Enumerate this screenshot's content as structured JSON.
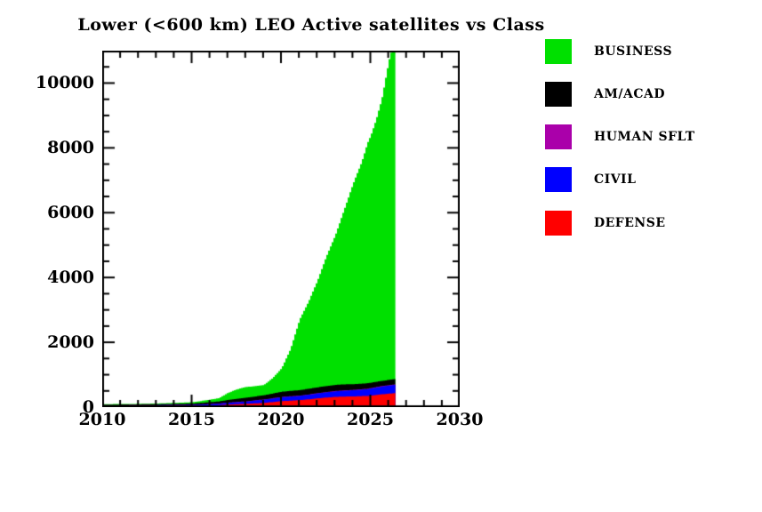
{
  "title": "Lower (<600 km) LEO Active satellites vs Class",
  "legend": {
    "items": [
      {
        "label": "BUSINESS",
        "color": "#00e000"
      },
      {
        "label": "AM/ACAD",
        "color": "#000000"
      },
      {
        "label": "HUMAN SFLT",
        "color": "#aa00aa"
      },
      {
        "label": "CIVIL",
        "color": "#0000ff"
      },
      {
        "label": "DEFENSE",
        "color": "#ff0000"
      }
    ]
  },
  "chart_data": {
    "type": "area",
    "stacked": true,
    "title": "Lower (<600 km) LEO Active satellites vs Class",
    "xlabel": "",
    "ylabel": "",
    "xlim": [
      2010,
      2030
    ],
    "ylim": [
      0,
      11000
    ],
    "grid": false,
    "legend_position": "right",
    "x_major_ticks": [
      2010,
      2015,
      2020,
      2025,
      2030
    ],
    "x_tick_labels": [
      "2010",
      "2015",
      "2020",
      "2025",
      "2030"
    ],
    "x_minor_step": 1,
    "y_major_ticks": [
      0,
      2000,
      4000,
      6000,
      8000,
      10000
    ],
    "y_tick_labels": [
      "0",
      "2000",
      "4000",
      "6000",
      "8000",
      "10000"
    ],
    "y_minor_step": 500,
    "data_end_year": 2026.4,
    "x": [
      2010,
      2011,
      2012,
      2013,
      2014,
      2015,
      2016,
      2016.5,
      2017,
      2017.5,
      2018,
      2018.5,
      2019,
      2019.5,
      2020,
      2020.5,
      2021,
      2021.5,
      2022,
      2022.5,
      2023,
      2023.5,
      2024,
      2024.5,
      2024.8,
      2025,
      2025.3,
      2025.6,
      2026,
      2026.4
    ],
    "series": [
      {
        "name": "DEFENSE",
        "color": "#ff0000",
        "values": [
          25,
          26,
          28,
          30,
          32,
          35,
          50,
          60,
          80,
          90,
          100,
          115,
          130,
          155,
          185,
          200,
          215,
          240,
          270,
          295,
          315,
          325,
          330,
          340,
          345,
          355,
          375,
          395,
          415,
          435
        ]
      },
      {
        "name": "CIVIL",
        "color": "#0000ff",
        "values": [
          25,
          26,
          27,
          28,
          30,
          32,
          40,
          45,
          55,
          62,
          70,
          85,
          100,
          110,
          120,
          125,
          130,
          140,
          150,
          160,
          170,
          180,
          190,
          200,
          210,
          220,
          230,
          240,
          250,
          258
        ]
      },
      {
        "name": "HUMAN SFLT",
        "color": "#aa00aa",
        "values": [
          5,
          5,
          5,
          5,
          5,
          5,
          6,
          6,
          6,
          7,
          8,
          8,
          8,
          9,
          10,
          10,
          10,
          10,
          10,
          11,
          12,
          12,
          12,
          13,
          13,
          14,
          14,
          14,
          15,
          15
        ]
      },
      {
        "name": "AM/ACAD",
        "color": "#000000",
        "values": [
          20,
          22,
          25,
          28,
          32,
          38,
          55,
          65,
          80,
          95,
          110,
          120,
          130,
          145,
          160,
          165,
          170,
          175,
          180,
          185,
          190,
          185,
          175,
          170,
          168,
          165,
          162,
          160,
          160,
          160
        ]
      },
      {
        "name": "BUSINESS",
        "color": "#00e000",
        "values": [
          15,
          16,
          15,
          19,
          31,
          40,
          79,
          104,
          219,
          296,
          332,
          317,
          312,
          481,
          725,
          1300,
          2175,
          2685,
          3290,
          4000,
          4613,
          5398,
          6193,
          6877,
          7414,
          7646,
          8119,
          8691,
          9860,
          10630
        ]
      }
    ]
  }
}
